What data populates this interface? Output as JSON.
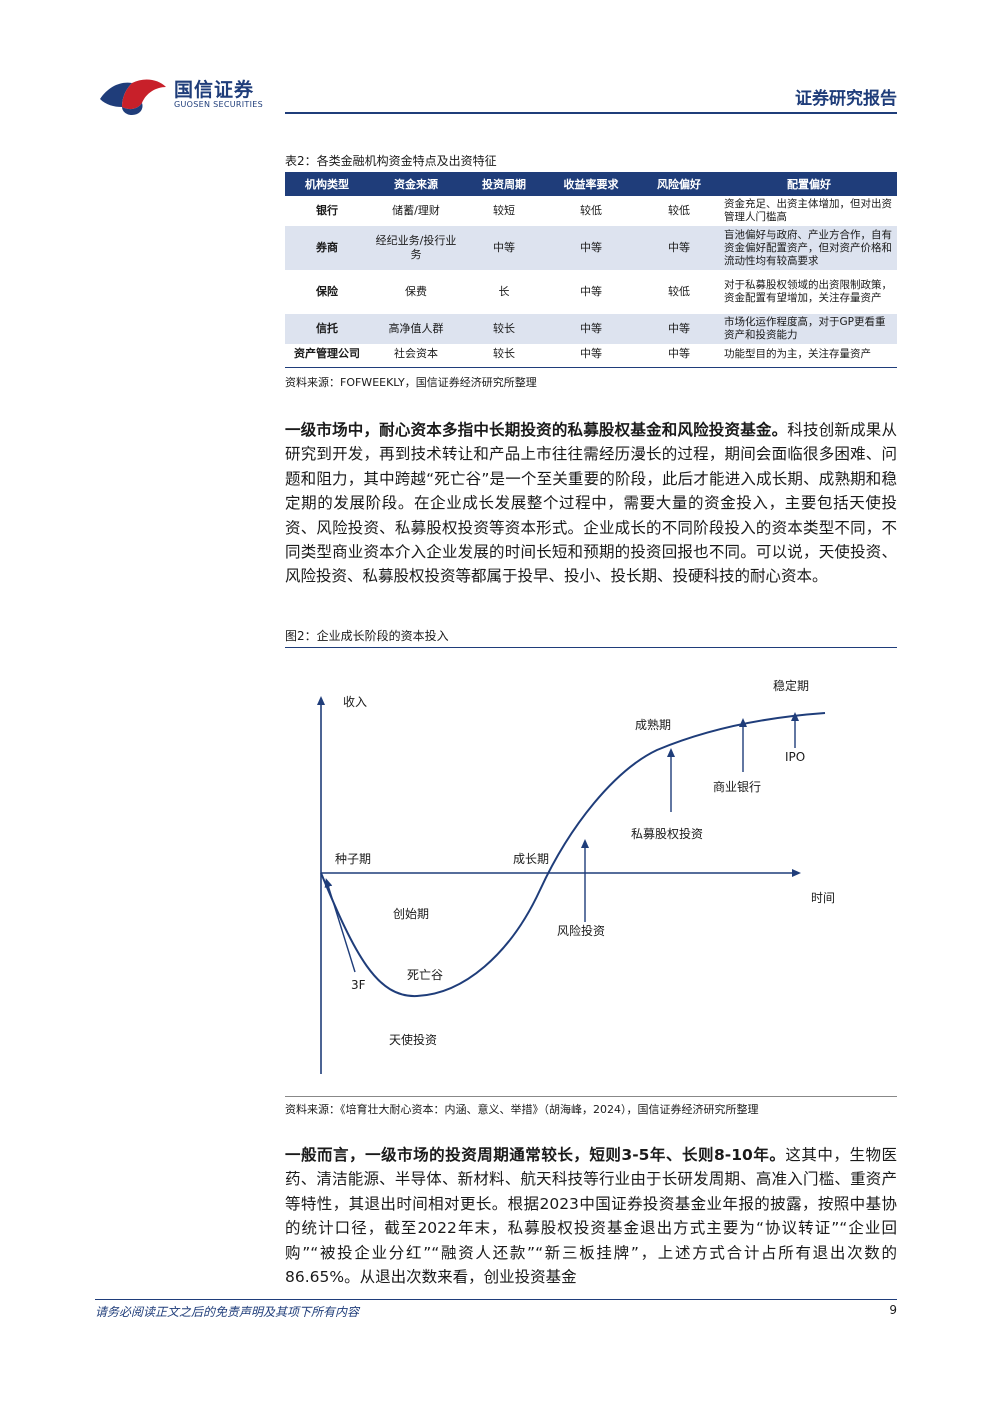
{
  "header": {
    "logo_cn": "国信证券",
    "logo_en": "GUOSEN SECURITIES",
    "report_type": "证券研究报告",
    "brand_color": "#1f3d7a",
    "accent_color": "#c8202a"
  },
  "table": {
    "caption": "表2：各类金融机构资金特点及出资特征",
    "columns": [
      "机构类型",
      "资金来源",
      "投资周期",
      "收益率要求",
      "风险偏好",
      "配置偏好"
    ],
    "rows": [
      [
        "银行",
        "储蓄/理财",
        "较短",
        "较低",
        "较低",
        "资金充足、出资主体增加，但对出资管理人门槛高"
      ],
      [
        "券商",
        "经纪业务/投行业务",
        "中等",
        "中等",
        "中等",
        "盲池偏好与政府、产业方合作，自有资金偏好配置资产，但对资产价格和流动性均有较高要求"
      ],
      [
        "保险",
        "保费",
        "长",
        "中等",
        "较低",
        "对于私募股权领域的出资限制政策，资金配置有望增加，关注存量资产"
      ],
      [
        "信托",
        "高净值人群",
        "较长",
        "中等",
        "中等",
        "市场化运作程度高，对于GP更看重资产和投资能力"
      ],
      [
        "资产管理公司",
        "社会资本",
        "较长",
        "中等",
        "中等",
        "功能型目的为主，关注存量资产"
      ]
    ],
    "source": "资料来源：FOFWEEKLY，国信证券经济研究所整理"
  },
  "para1": {
    "bold": "一级市场中，耐心资本多指中长期投资的私募股权基金和风险投资基金。",
    "text": "科技创新成果从研究到开发，再到技术转让和产品上市往往需经历漫长的过程，期间会面临很多困难、问题和阻力，其中跨越“死亡谷”是一个至关重要的阶段，此后才能进入成长期、成熟期和稳定期的发展阶段。在企业成长发展整个过程中，需要大量的资金投入，主要包括天使投资、风险投资、私募股权投资等资本形式。企业成长的不同阶段投入的资本类型不同，不同类型商业资本介入企业发展的时间长短和预期的投资回报也不同。可以说，天使投资、风险投资、私募股权投资等都属于投早、投小、投长期、投硬科技的耐心资本。"
  },
  "figure": {
    "caption": "图2：企业成长阶段的资本投入",
    "y_axis_label": "收入",
    "x_axis_label": "时间",
    "stages": [
      "种子期",
      "创始期",
      "死亡谷",
      "成长期",
      "成熟期",
      "稳定期"
    ],
    "capital": [
      "3F",
      "天使投资",
      "风险投资",
      "私募股权投资",
      "商业银行",
      "IPO"
    ],
    "source": "资料来源：《培育壮大耐心资本：内涵、意义、举措》（胡海峰，2024），国信证券经济研究所整理",
    "curve_color": "#1f3d7a"
  },
  "para2": {
    "bold": "一般而言，一级市场的投资周期通常较长，短则3-5年、长则8-10年。",
    "text": "这其中，生物医药、清洁能源、半导体、新材料、航天科技等行业由于长研发周期、高准入门槛、重资产等特性，其退出时间相对更长。根据2023中国证券投资基金业年报的披露，按照中基协的统计口径，截至2022年末，私募股权投资基金退出方式主要为“协议转证”“企业回购”“被投企业分红”“融资人还款”“新三板挂牌”，上述方式合计占所有退出次数的86.65%。从退出次数来看，创业投资基金"
  },
  "footer": {
    "disclaimer": "请务必阅读正文之后的免责声明及其项下所有内容",
    "page_number": "9"
  }
}
